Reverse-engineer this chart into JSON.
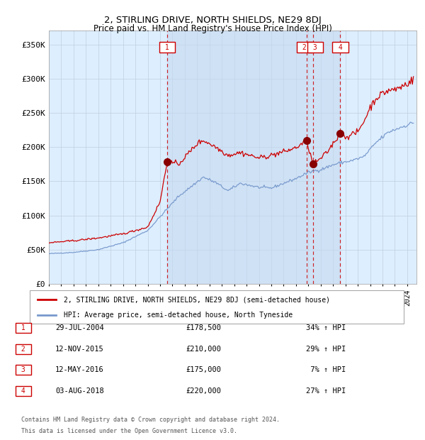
{
  "title": "2, STIRLING DRIVE, NORTH SHIELDS, NE29 8DJ",
  "subtitle": "Price paid vs. HM Land Registry's House Price Index (HPI)",
  "legend_line1": "2, STIRLING DRIVE, NORTH SHIELDS, NE29 8DJ (semi-detached house)",
  "legend_line2": "HPI: Average price, semi-detached house, North Tyneside",
  "footer_line1": "Contains HM Land Registry data © Crown copyright and database right 2024.",
  "footer_line2": "This data is licensed under the Open Government Licence v3.0.",
  "transactions": [
    {
      "num": 1,
      "date": "29-JUL-2004",
      "price": "£178,500",
      "hpi_change": "34% ↑ HPI"
    },
    {
      "num": 2,
      "date": "12-NOV-2015",
      "price": "£210,000",
      "hpi_change": "29% ↑ HPI"
    },
    {
      "num": 3,
      "date": "12-MAY-2016",
      "price": "£175,000",
      "hpi_change": " 7% ↑ HPI"
    },
    {
      "num": 4,
      "date": "03-AUG-2018",
      "price": "£220,000",
      "hpi_change": "27% ↑ HPI"
    }
  ],
  "transaction_dates_decimal": [
    2004.572,
    2015.863,
    2016.362,
    2018.587
  ],
  "transaction_prices": [
    178500,
    210000,
    175000,
    220000
  ],
  "ylim": [
    0,
    370000
  ],
  "yticks": [
    0,
    50000,
    100000,
    150000,
    200000,
    250000,
    300000,
    350000
  ],
  "ytick_labels": [
    "£0",
    "£50K",
    "£100K",
    "£150K",
    "£200K",
    "£250K",
    "£300K",
    "£350K"
  ],
  "xlim_start": 1995.0,
  "xlim_end": 2024.75,
  "bg_color": "#ddeeff",
  "shade_color": "#c5d8ee",
  "grid_color": "#c0cfe0",
  "red_line_color": "#cc0000",
  "blue_line_color": "#7799cc",
  "dashed_line_color": "#cc0000",
  "marker_color": "#880000",
  "box_edge_color": "#cc0000",
  "box_text_color": "#cc0000",
  "legend_border_color": "#aaaaaa",
  "footer_color": "#555555",
  "table_border_color": "#888888"
}
